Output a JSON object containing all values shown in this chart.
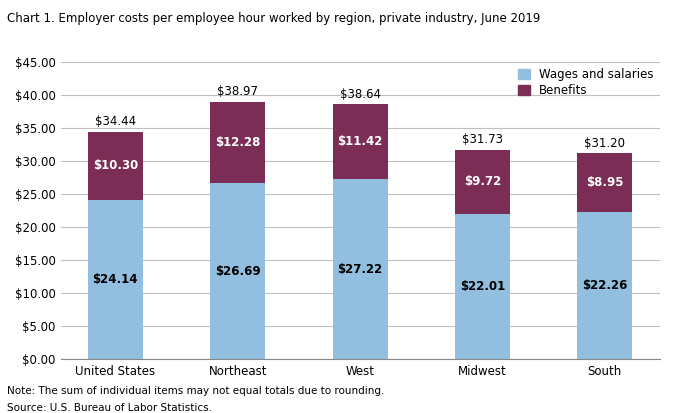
{
  "title": "Chart 1. Employer costs per employee hour worked by region, private industry, June 2019",
  "categories": [
    "United States",
    "Northeast",
    "West",
    "Midwest",
    "South"
  ],
  "wages": [
    24.14,
    26.69,
    27.22,
    22.01,
    22.26
  ],
  "benefits": [
    10.3,
    12.28,
    11.42,
    9.72,
    8.95
  ],
  "totals": [
    34.44,
    38.97,
    38.64,
    31.73,
    31.2
  ],
  "wages_color": "#92BFDF",
  "benefits_color": "#7B2D55",
  "ylim": [
    0,
    45
  ],
  "yticks": [
    0,
    5,
    10,
    15,
    20,
    25,
    30,
    35,
    40,
    45
  ],
  "legend_wages": "Wages and salaries",
  "legend_benefits": "Benefits",
  "note": "Note: The sum of individual items may not equal totals due to rounding.",
  "source": "Source: U.S. Bureau of Labor Statistics.",
  "title_fontsize": 8.5,
  "tick_fontsize": 8.5,
  "label_fontsize": 8.5,
  "note_fontsize": 7.5,
  "bar_width": 0.45
}
